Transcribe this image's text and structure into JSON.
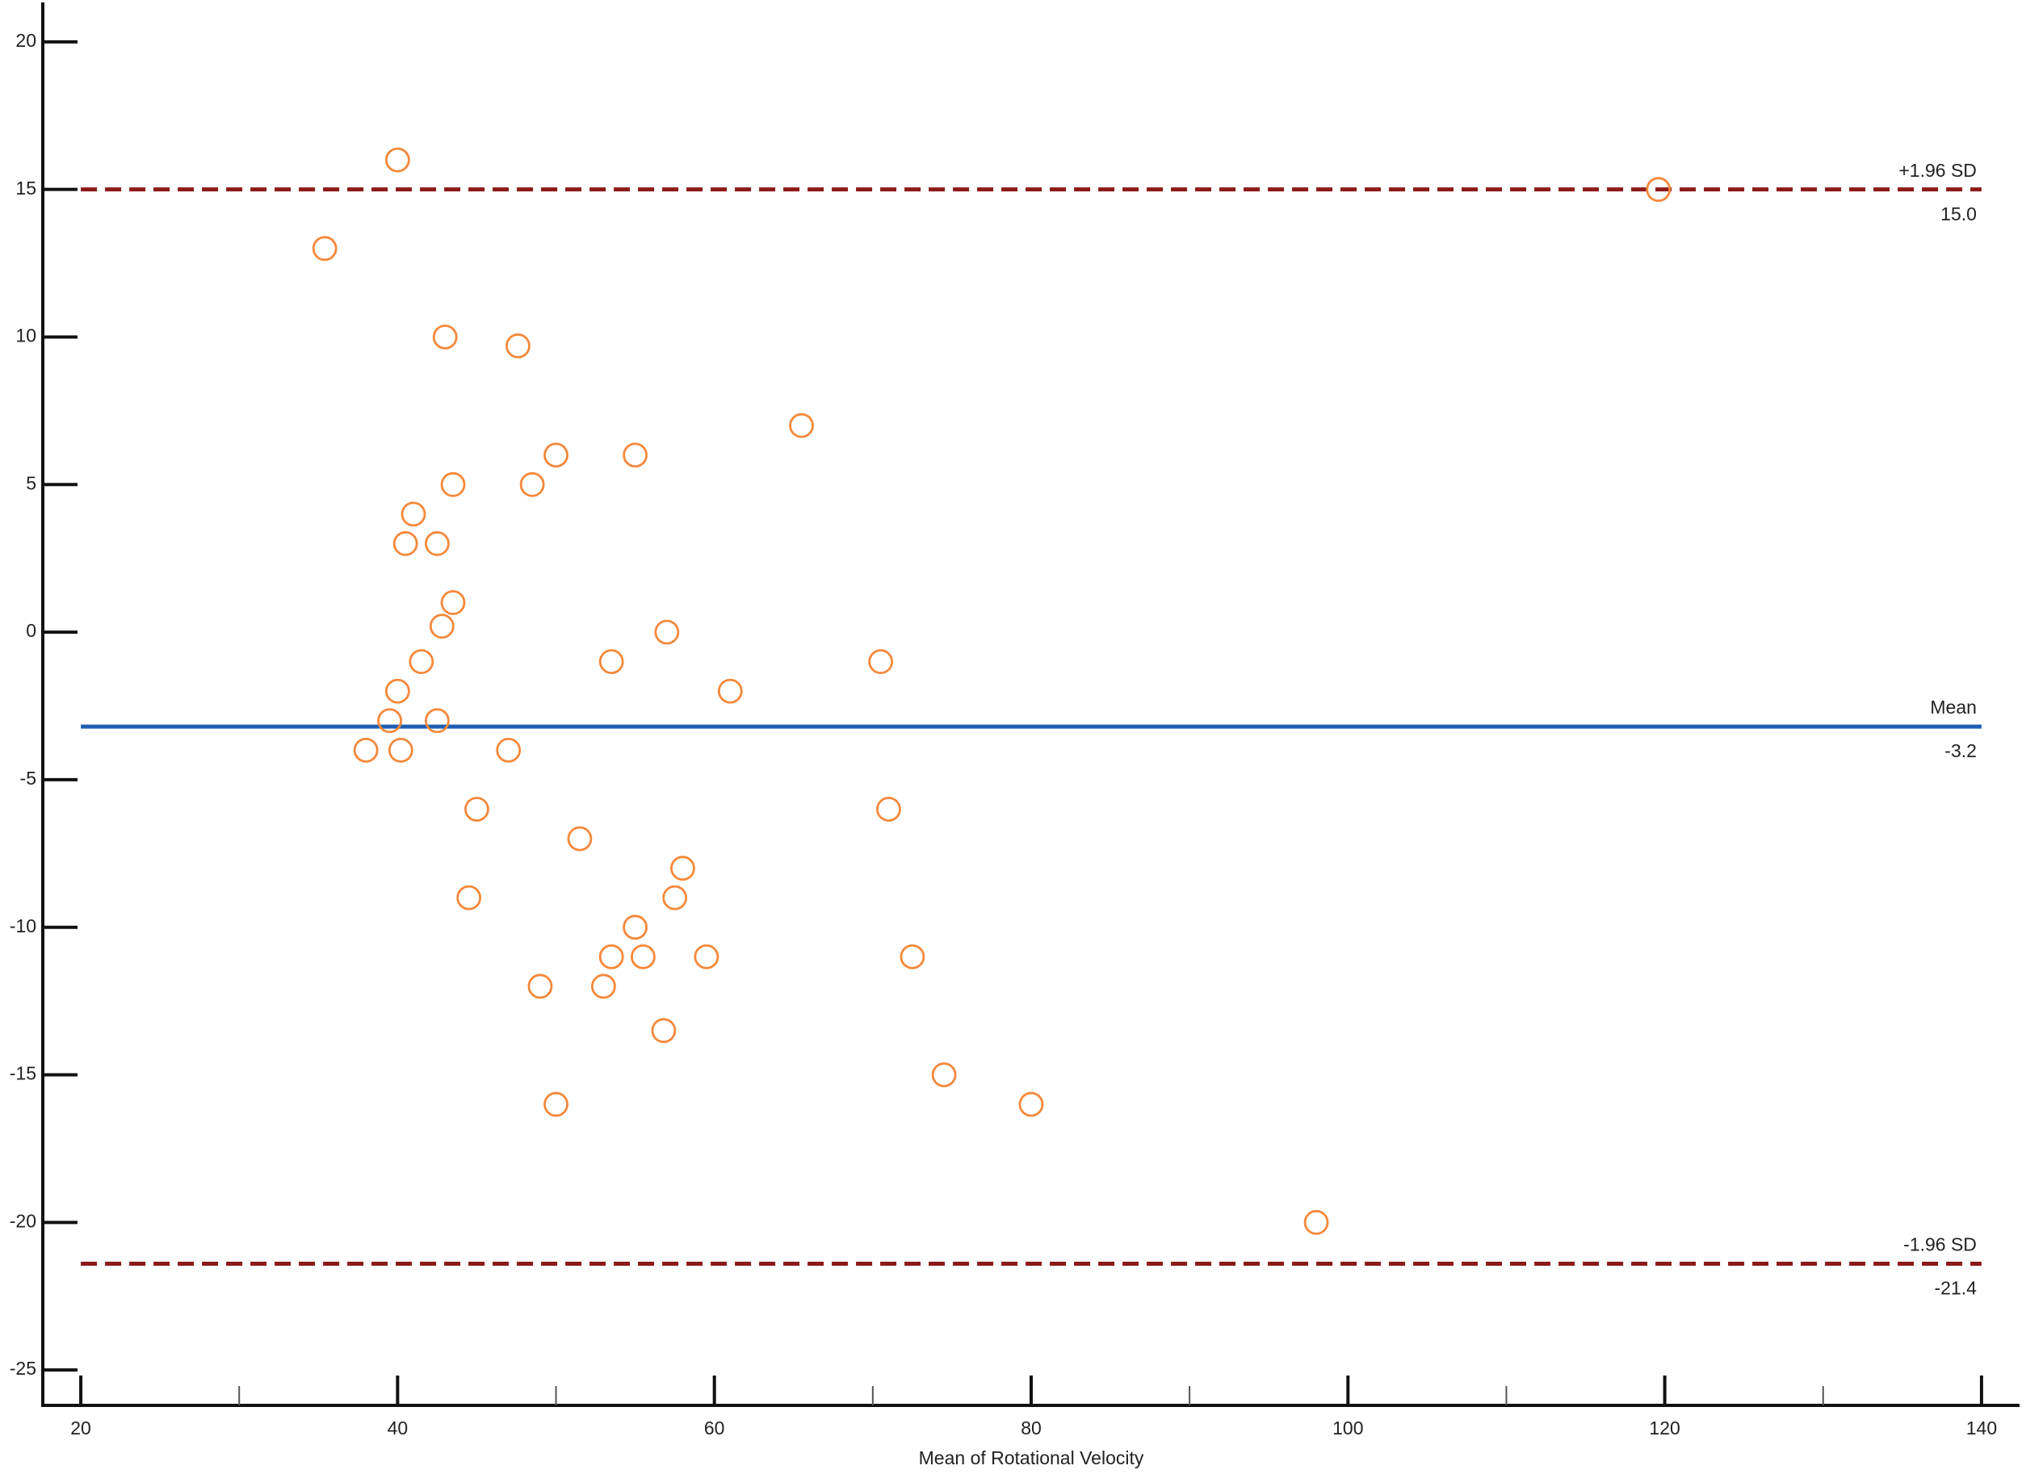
{
  "chart_data": {
    "type": "scatter",
    "x_label": "Mean of Rotational Velocity",
    "xlim": [
      17.6,
      142.4
    ],
    "ylim": [
      -26.2,
      21.2
    ],
    "xticks": [
      20,
      40,
      60,
      80,
      100,
      120,
      140
    ],
    "xminorticks": [
      30,
      50,
      70,
      90,
      110,
      130
    ],
    "yticks": [
      -25,
      -20,
      -15,
      -10,
      -5,
      0,
      5,
      10,
      15,
      20
    ],
    "series": [
      {
        "color": "#f5883a",
        "x": [
          40,
          35.4,
          43,
          47.6,
          65.5,
          50,
          55,
          43.5,
          48.5,
          41,
          40.5,
          42.5,
          43.5,
          42.8,
          57,
          41.5,
          53.5,
          70.5,
          40,
          61,
          39.5,
          42.5,
          38,
          40.2,
          47,
          45,
          71,
          51.5,
          58,
          44.5,
          57.5,
          55,
          53.5,
          55.5,
          59.5,
          72.5,
          49,
          53,
          56.8,
          74.5,
          50,
          80,
          98,
          119.6
        ],
        "values": [
          16,
          13,
          10,
          9.7,
          7,
          6,
          6,
          5,
          5,
          4,
          3,
          3,
          1,
          0.2,
          0,
          -1,
          -1,
          -1,
          -2,
          -2,
          -3,
          -3,
          -4,
          -4,
          -4,
          -6,
          -6,
          -7,
          -8,
          -9,
          -9,
          -10,
          -11,
          -11,
          -11,
          -11,
          -12,
          -12,
          -13.5,
          -15,
          -16,
          -16,
          -20,
          15
        ]
      }
    ],
    "reference_lines": [
      {
        "name": "+1.96 SD",
        "value": 15,
        "value_label": "15.0",
        "color": "#8b1a1a",
        "dashed": true
      },
      {
        "name": "Mean",
        "value": -3.2,
        "value_label": "-3.2",
        "color": "#1f5fb4",
        "dashed": false
      },
      {
        "name": "-1.96 SD",
        "value": -21.4,
        "value_label": "-21.4",
        "color": "#8b1a1a",
        "dashed": true
      }
    ]
  }
}
